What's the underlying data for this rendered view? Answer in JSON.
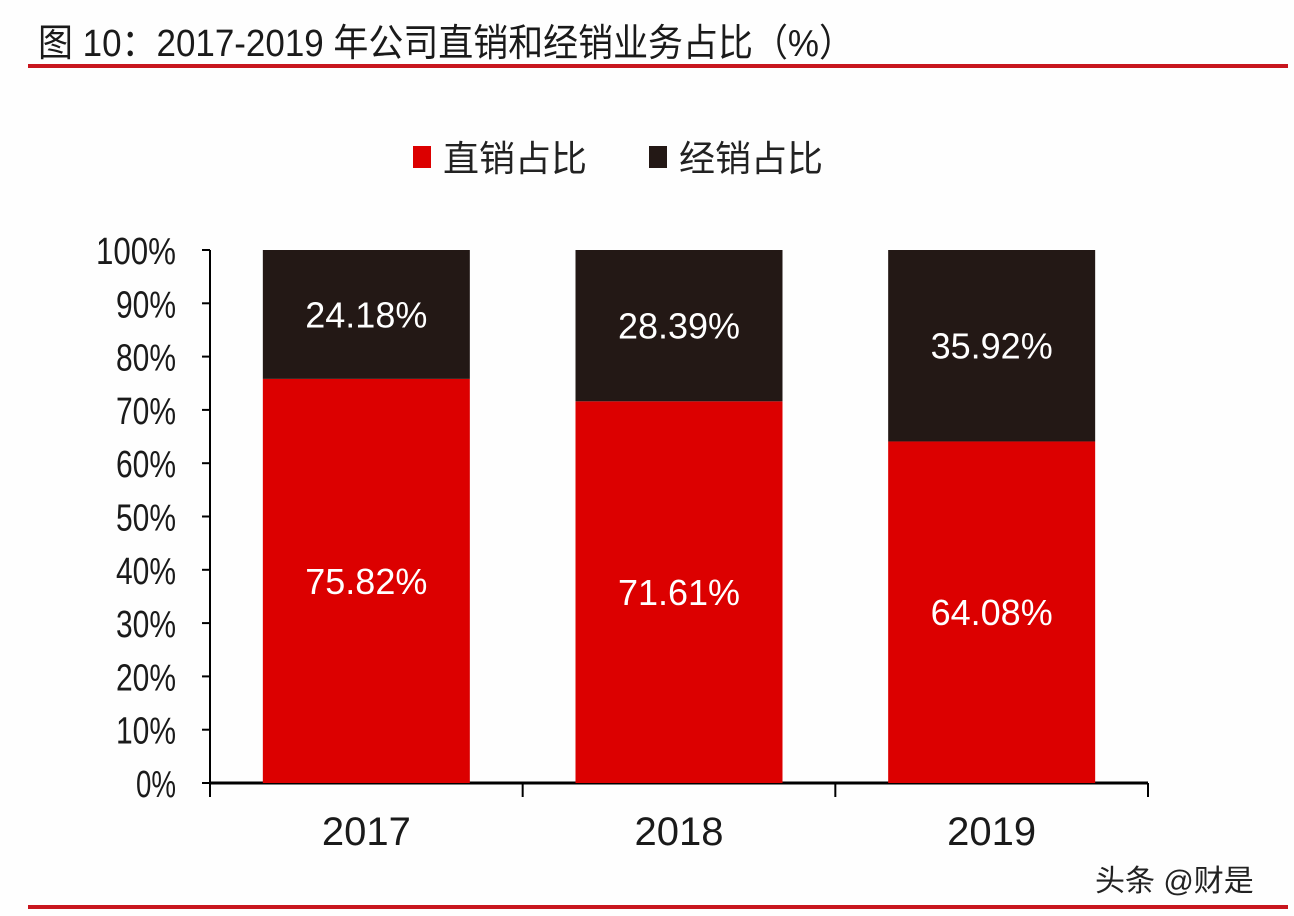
{
  "chart_data": {
    "type": "bar",
    "stacked": true,
    "title": "图 10：2017-2019 年公司直销和经销业务占比（%）",
    "categories": [
      "2017",
      "2018",
      "2019"
    ],
    "series": [
      {
        "name": "直销占比",
        "values": [
          75.82,
          71.61,
          64.08
        ],
        "labels": [
          "75.82%",
          "71.61%",
          "64.08%"
        ],
        "color": "#dc0000"
      },
      {
        "name": "经销占比",
        "values": [
          24.18,
          28.39,
          35.92
        ],
        "labels": [
          "24.18%",
          "28.39%",
          "35.92%"
        ],
        "color": "#231815"
      }
    ],
    "ylim": [
      0,
      100
    ],
    "yticks": [
      "0%",
      "10%",
      "20%",
      "30%",
      "40%",
      "50%",
      "60%",
      "70%",
      "80%",
      "90%",
      "100%"
    ],
    "legend": "top-center",
    "grid": false
  },
  "watermark": "头条 @财是",
  "accent_color": "#c8161e"
}
